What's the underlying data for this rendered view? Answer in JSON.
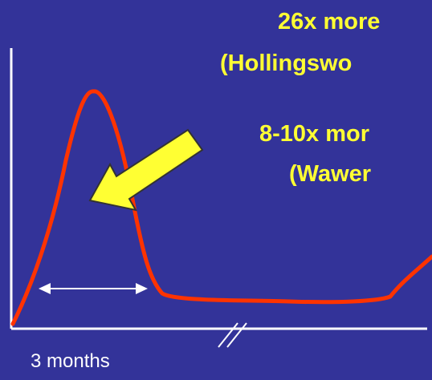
{
  "annotations": {
    "line1": "26x more",
    "line2": "(Hollingswo",
    "line3": "8-10x mor",
    "line4": "(Wawer"
  },
  "x_axis": {
    "label": "3 months"
  },
  "colors": {
    "background": "#333399",
    "curve": "#FF3300",
    "arrow_fill": "#FFFF33",
    "arrow_outline": "#333333",
    "text_highlight": "#FFFF33",
    "axis": "#FFFFFF"
  }
}
